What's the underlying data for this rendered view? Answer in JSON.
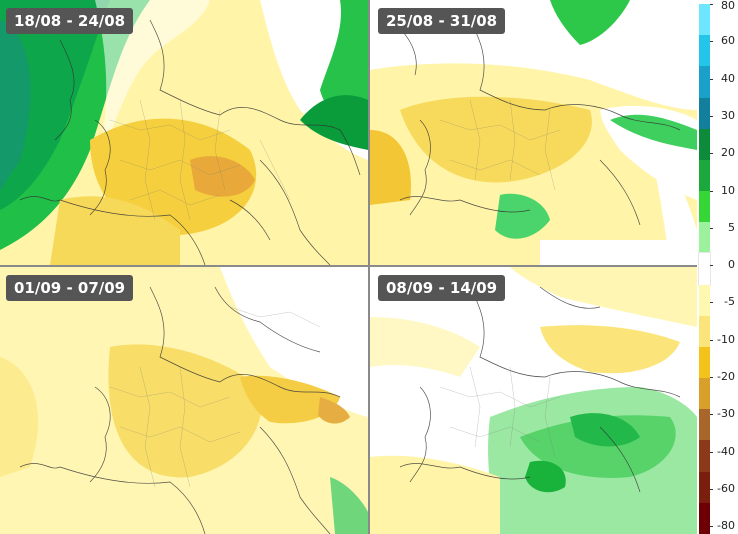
{
  "panels": [
    {
      "label": "18/08 - 24/08"
    },
    {
      "label": "25/08 - 31/08"
    },
    {
      "label": "01/09 - 07/09"
    },
    {
      "label": "08/09 - 14/09"
    }
  ],
  "colorbar": {
    "ticks": [
      "80",
      "60",
      "40",
      "30",
      "20",
      "10",
      "5",
      "0",
      "-5",
      "-10",
      "-20",
      "-30",
      "-40",
      "-60",
      "-80"
    ],
    "colors": [
      "#6fe6ff",
      "#23c6e9",
      "#1ba1c9",
      "#127f9c",
      "#0c8c3a",
      "#1ca83d",
      "#35d635",
      "#9cf19c",
      "#ffffff",
      "#fff8b0",
      "#fbe57a",
      "#f3c21b",
      "#d8a02a",
      "#a9662a",
      "#8a3a18",
      "#7a1e0e",
      "#6e0005"
    ]
  }
}
